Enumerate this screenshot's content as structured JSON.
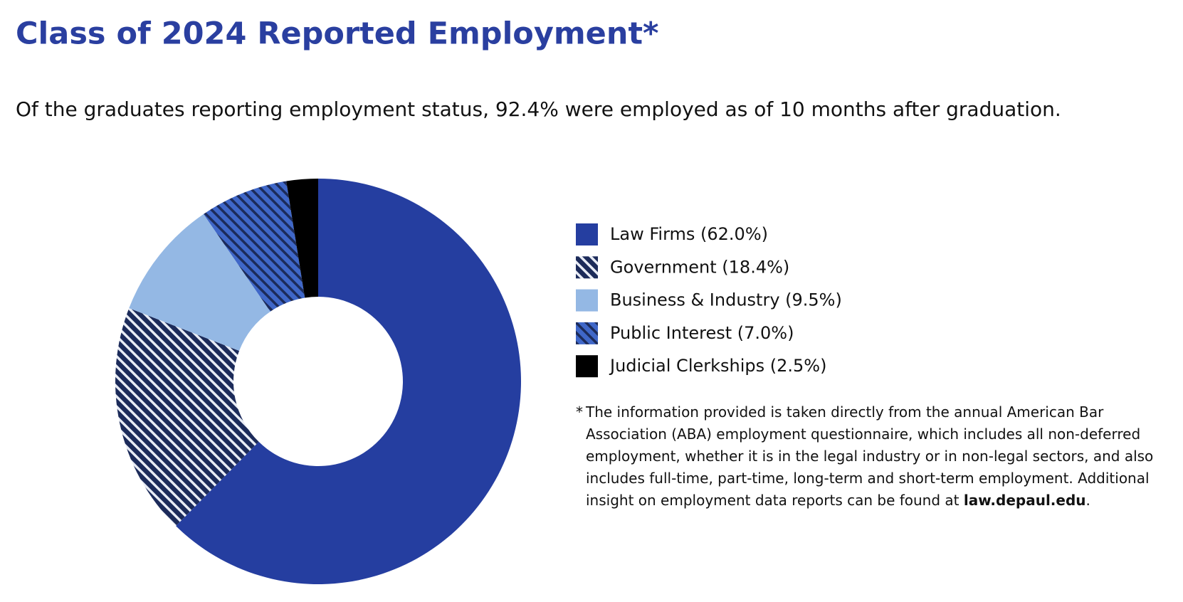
{
  "chart_data": {
    "type": "donut",
    "title": "Class of 2024 Reported Employment*",
    "subtitle": "Of the graduates reporting employment status, 92.4% were employed as of 10 months after graduation.",
    "categories": [
      "Law Firms (62.0%)",
      "Government (18.4%)",
      "Business & Industry (9.5%)",
      "Public Interest (7.0%)",
      "Judicial Clerkships (2.5%)"
    ],
    "values": [
      62.0,
      18.4,
      9.5,
      7.0,
      2.5
    ],
    "colors": [
      "#253ea0",
      "#1c2b5a",
      "#94b8e4",
      "#3f67c8",
      "#000000"
    ],
    "hatch_colors": [
      null,
      "#e8ecf5",
      null,
      "#1c2b5a",
      null
    ],
    "footnote": {
      "marker": "*",
      "text": "The information provided is taken directly from the annual American Bar Association (ABA) employment questionnaire, which includes all non-deferred employment, whether it is in the legal industry or in non-legal sectors, and also includes full-time, part-time, long-term and short-term employment. Additional insight on employment data reports can be found at ",
      "link": "law.depaul.edu",
      "end": "."
    }
  }
}
